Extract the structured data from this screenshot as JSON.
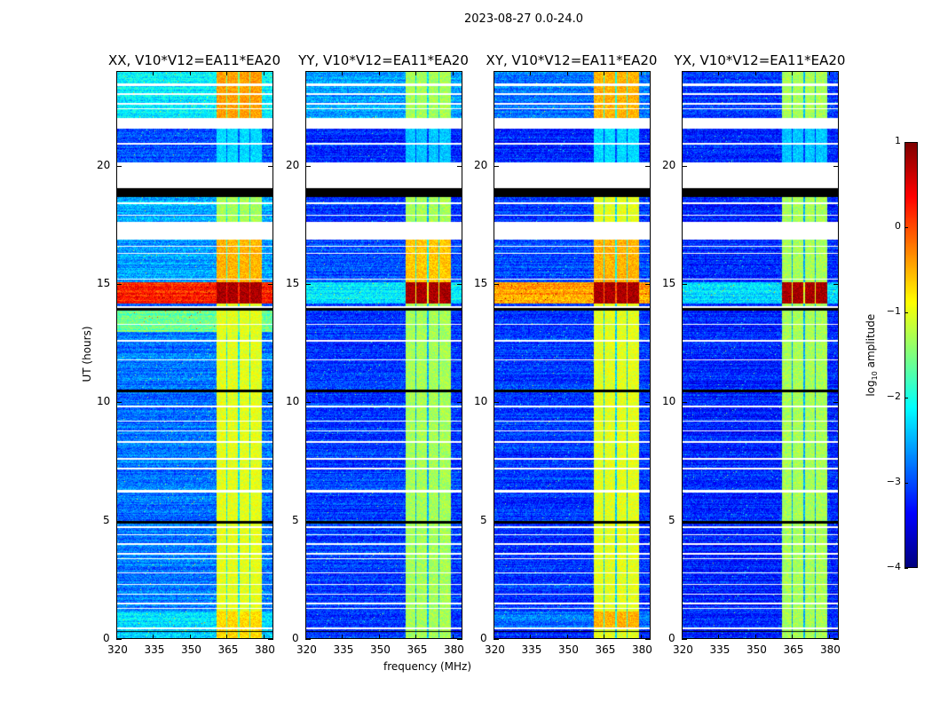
{
  "chart_data": {
    "type": "heatmap",
    "title": "2023-08-27 0.0-24.0",
    "xlabel": "frequency (MHz)",
    "ylabel": "UT (hours)",
    "xlim": [
      320,
      384
    ],
    "ylim": [
      0,
      24
    ],
    "xticks": [
      320,
      335,
      350,
      365,
      380
    ],
    "yticks": [
      0,
      5,
      10,
      15,
      20
    ],
    "colorbar": {
      "label": "log10 amplitude",
      "label_main": "log",
      "label_sub": "10",
      "label_rest": " amplitude",
      "range": [
        -4,
        1
      ],
      "ticks": [
        1,
        0,
        -1,
        -2,
        -3,
        -4
      ],
      "tick_labels": [
        "1",
        "0",
        "−1",
        "−2",
        "−3",
        "−4"
      ],
      "colormap": "jet"
    },
    "rfi_band_mhz": [
      [
        360.5,
        364.5
      ],
      [
        365,
        369.5
      ],
      [
        370,
        374
      ],
      [
        374.5,
        379
      ]
    ],
    "flagged_white_hours": [
      [
        21.6,
        22.05
      ],
      [
        19.07,
        20.15
      ],
      [
        16.9,
        17.64
      ],
      [
        23.4,
        23.5
      ],
      [
        23.0,
        23.08
      ],
      [
        22.6,
        22.66
      ],
      [
        22.4,
        22.45
      ],
      [
        20.9,
        20.98
      ],
      [
        18.4,
        18.47
      ],
      [
        17.9,
        17.96
      ],
      [
        16.6,
        16.65
      ],
      [
        16.3,
        16.35
      ],
      [
        15.2,
        15.26
      ],
      [
        14.0,
        14.1
      ],
      [
        13.3,
        13.35
      ],
      [
        12.6,
        12.65
      ],
      [
        11.8,
        11.85
      ],
      [
        9.8,
        9.87
      ],
      [
        9.2,
        9.26
      ],
      [
        8.8,
        8.85
      ],
      [
        8.3,
        8.38
      ],
      [
        7.6,
        7.65
      ],
      [
        7.2,
        7.26
      ],
      [
        6.2,
        6.32
      ],
      [
        4.7,
        4.78
      ],
      [
        4.4,
        4.45
      ],
      [
        4.0,
        4.05
      ],
      [
        3.6,
        3.65
      ],
      [
        3.4,
        3.45
      ],
      [
        2.8,
        2.85
      ],
      [
        2.3,
        2.35
      ],
      [
        1.9,
        1.95
      ],
      [
        1.5,
        1.55
      ],
      [
        1.3,
        1.35
      ],
      [
        0.45,
        0.5
      ]
    ],
    "flagged_black_hours": [
      [
        18.7,
        19.07
      ],
      [
        10.45,
        10.55
      ],
      [
        4.9,
        5.0
      ],
      [
        0.3,
        0.36
      ],
      [
        13.9,
        14.0
      ]
    ],
    "panels": [
      {
        "title": "XX, V10*V12=EA11*EA20",
        "default": [
          -2.8,
          -1.0
        ],
        "segments": [
          [
            0,
            1.2,
            -2.3,
            -0.7
          ],
          [
            13,
            14,
            -1.6,
            -1.0
          ],
          [
            14.2,
            15.1,
            0.2,
            0.8
          ],
          [
            15.1,
            17,
            -2.6,
            -0.5
          ],
          [
            17,
            19,
            -2.5,
            -1.3
          ],
          [
            20,
            22,
            -3.0,
            -2.3
          ],
          [
            22,
            24,
            -2.2,
            -0.4
          ]
        ]
      },
      {
        "title": "YY, V10*V12=EA11*EA20",
        "default": [
          -3.1,
          -1.3
        ],
        "segments": [
          [
            14.2,
            15.1,
            -2.2,
            0.8
          ],
          [
            15.1,
            17,
            -3.0,
            -0.6
          ],
          [
            20,
            22,
            -3.2,
            -2.4
          ],
          [
            22,
            24,
            -2.6,
            -1.3
          ]
        ]
      },
      {
        "title": "XY, V10*V12=EA11*EA20",
        "default": [
          -3.1,
          -1.0
        ],
        "segments": [
          [
            0.5,
            1.2,
            -2.8,
            -0.5
          ],
          [
            14.2,
            15.1,
            -0.4,
            0.8
          ],
          [
            15.1,
            17,
            -3.0,
            -0.5
          ],
          [
            20,
            22,
            -3.2,
            -2.3
          ],
          [
            22,
            24,
            -2.8,
            -0.5
          ]
        ]
      },
      {
        "title": "YX, V10*V12=EA11*EA20",
        "default": [
          -3.2,
          -1.3
        ],
        "segments": [
          [
            14.2,
            15.1,
            -2.3,
            0.8
          ],
          [
            20,
            22,
            -3.2,
            -2.4
          ],
          [
            22,
            24,
            -3.1,
            -1.3
          ]
        ]
      }
    ]
  }
}
